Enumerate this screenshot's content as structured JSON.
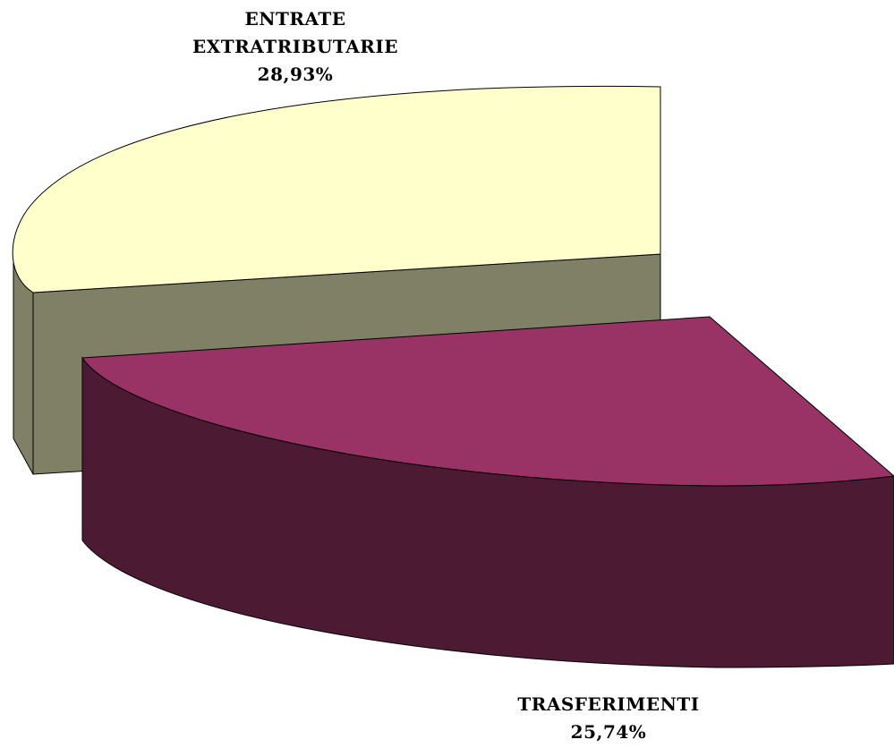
{
  "chart_data": {
    "type": "pie",
    "title": "",
    "slices": [
      {
        "label_lines": [
          "ENTRATE",
          "EXTRATRIBUTARIE"
        ],
        "value_text": "28,93%",
        "value": 28.93,
        "top_color": "#FFFFCC",
        "side_color": "#808066"
      },
      {
        "label_lines": [
          "TRASFERIMENTI"
        ],
        "value_text": "25,74%",
        "value": 25.74,
        "top_color": "#993366",
        "side_color": "#4D1A33"
      }
    ],
    "legend": "none",
    "grid": false,
    "style": "3d-exploded"
  }
}
